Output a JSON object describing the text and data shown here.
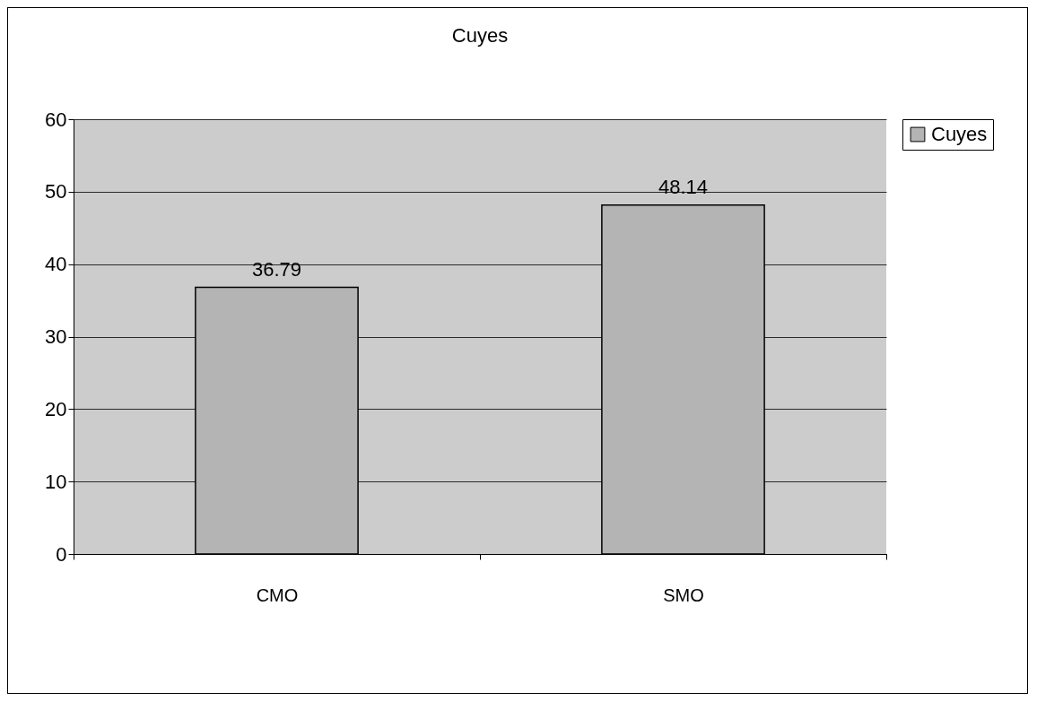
{
  "chart_data": {
    "type": "bar",
    "title": "Cuyes",
    "categories": [
      "CMO",
      "SMO"
    ],
    "series": [
      {
        "name": "Cuyes",
        "color": "#b4b4b4",
        "values": [
          36.79,
          48.14
        ]
      }
    ],
    "ylim": [
      0,
      60
    ],
    "yticks": [
      0,
      10,
      20,
      30,
      40,
      50,
      60
    ],
    "grid": "y",
    "legend": "right",
    "data_labels": true
  }
}
